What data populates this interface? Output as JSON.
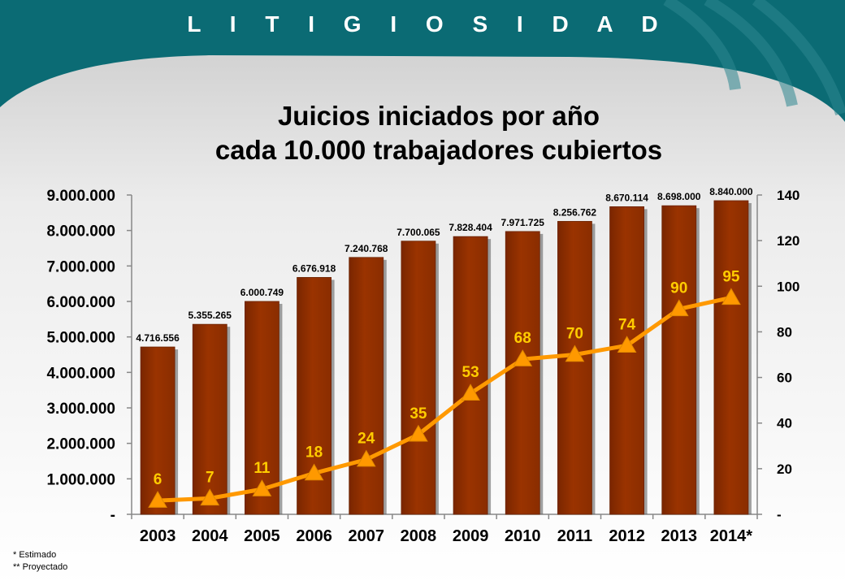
{
  "header": {
    "banner_title": "L I T I G I O S I D A D",
    "banner_color": "#0b6b74"
  },
  "chart_data": {
    "type": "bar",
    "title": [
      "Juicios iniciados por año",
      "cada 10.000 trabajadores cubiertos"
    ],
    "categories": [
      "2003",
      "2004",
      "2005",
      "2006",
      "2007",
      "2008",
      "2009",
      "2010",
      "2011",
      "2012",
      "2013",
      "2014*"
    ],
    "series": [
      {
        "type": "bar",
        "axis": "left",
        "color": "#993300",
        "values": [
          4716556,
          5355265,
          6000749,
          6676918,
          7240768,
          7700065,
          7828404,
          7971725,
          8256762,
          8670114,
          8698000,
          8840000
        ],
        "labels": [
          "4.716.556",
          "5.355.265",
          "6.000.749",
          "6.676.918",
          "7.240.768",
          "7.700.065",
          "7.828.404",
          "7.971.725",
          "8.256.762",
          "8.670.114",
          "8.698.000",
          "8.840.000"
        ]
      },
      {
        "type": "line",
        "axis": "right",
        "marker": "triangle",
        "color": "#ff9900",
        "label_color": "#ffcc00",
        "values": [
          6,
          7,
          11,
          18,
          24,
          35,
          53,
          68,
          70,
          74,
          90,
          95
        ],
        "labels": [
          "6",
          "7",
          "11",
          "18",
          "24",
          "35",
          "53",
          "68",
          "70",
          "74",
          "90",
          "95"
        ]
      }
    ],
    "y_left": {
      "min": 0,
      "max": 9000000,
      "ticks": [
        0,
        1000000,
        2000000,
        3000000,
        4000000,
        5000000,
        6000000,
        7000000,
        8000000,
        9000000
      ],
      "tick_labels": [
        "-",
        "1.000.000",
        "2.000.000",
        "3.000.000",
        "4.000.000",
        "5.000.000",
        "6.000.000",
        "7.000.000",
        "8.000.000",
        "9.000.000"
      ]
    },
    "y_right": {
      "min": 0,
      "max": 140,
      "ticks": [
        0,
        20,
        40,
        60,
        80,
        100,
        120,
        140
      ],
      "tick_labels": [
        "-",
        "20",
        "40",
        "60",
        "80",
        "100",
        "120",
        "140"
      ]
    },
    "grid": false,
    "legend": "none"
  },
  "footnotes": [
    "*  Estimado",
    "** Proyectado"
  ]
}
